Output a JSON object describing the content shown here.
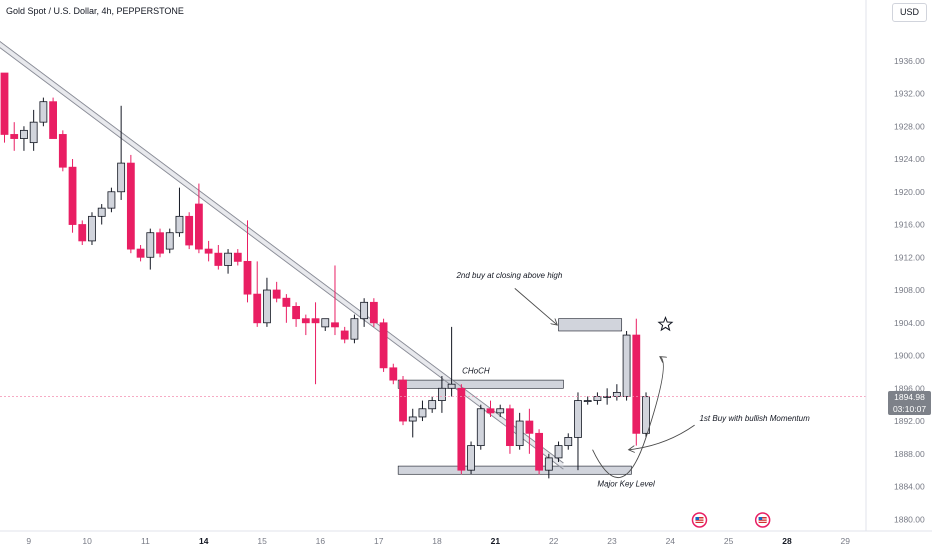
{
  "header": {
    "title": "Gold Spot / U.S. Dollar, 4h, PEPPERSTONE",
    "currency": "USD"
  },
  "last_price": {
    "value": "1894.98",
    "countdown": "03:10:07"
  },
  "colors": {
    "bearish": "#e91e63",
    "bullish": "#d1d4dc",
    "candle_border": "#131722",
    "zone": "#d1d4dc",
    "price_line": "#f48fb1"
  },
  "icons": [
    "us-flag-icon",
    "us-flag-icon",
    "star-icon"
  ],
  "chart_data": {
    "type": "candlestick",
    "instrument": "Gold Spot / U.S. Dollar",
    "interval": "4h",
    "y_range": [
      1879,
      1940
    ],
    "y_ticks": [
      {
        "value": 1880,
        "label": "1880.00"
      },
      {
        "value": 1884,
        "label": "1884.00"
      },
      {
        "value": 1888,
        "label": "1888.00"
      },
      {
        "value": 1892,
        "label": "1892.00"
      },
      {
        "value": 1896,
        "label": "1896.00"
      },
      {
        "value": 1900,
        "label": "1900.00"
      },
      {
        "value": 1904,
        "label": "1904.00"
      },
      {
        "value": 1908,
        "label": "1908.00"
      },
      {
        "value": 1912,
        "label": "1912.00"
      },
      {
        "value": 1916,
        "label": "1916.00"
      },
      {
        "value": 1920,
        "label": "1920.00"
      },
      {
        "value": 1924,
        "label": "1924.00"
      },
      {
        "value": 1928,
        "label": "1928.00"
      },
      {
        "value": 1932,
        "label": "1932.00"
      },
      {
        "value": 1936,
        "label": "1936.00"
      }
    ],
    "x_ticks": [
      {
        "i": 2.5,
        "label": "9",
        "bold": false
      },
      {
        "i": 8.5,
        "label": "10",
        "bold": false
      },
      {
        "i": 14.5,
        "label": "11",
        "bold": false
      },
      {
        "i": 20.5,
        "label": "14",
        "bold": true
      },
      {
        "i": 26.5,
        "label": "15",
        "bold": false
      },
      {
        "i": 32.5,
        "label": "16",
        "bold": false
      },
      {
        "i": 38.5,
        "label": "17",
        "bold": false
      },
      {
        "i": 44.5,
        "label": "18",
        "bold": false
      },
      {
        "i": 50.5,
        "label": "21",
        "bold": true
      },
      {
        "i": 56.5,
        "label": "22",
        "bold": false
      },
      {
        "i": 62.5,
        "label": "23",
        "bold": false
      },
      {
        "i": 68.5,
        "label": "24",
        "bold": false
      },
      {
        "i": 74.5,
        "label": "25",
        "bold": false
      },
      {
        "i": 80.5,
        "label": "28",
        "bold": true
      },
      {
        "i": 86.5,
        "label": "29",
        "bold": false
      }
    ],
    "candles": [
      {
        "o": 1934.5,
        "h": 1934.5,
        "l": 1926.0,
        "c": 1927.0
      },
      {
        "o": 1927.0,
        "h": 1928.5,
        "l": 1925.0,
        "c": 1926.5
      },
      {
        "o": 1926.5,
        "h": 1928.0,
        "l": 1925.0,
        "c": 1927.5
      },
      {
        "o": 1926.0,
        "h": 1930.0,
        "l": 1925.0,
        "c": 1928.5
      },
      {
        "o": 1928.5,
        "h": 1931.5,
        "l": 1928.0,
        "c": 1931.0
      },
      {
        "o": 1931.0,
        "h": 1931.5,
        "l": 1926.5,
        "c": 1926.5
      },
      {
        "o": 1927.0,
        "h": 1927.5,
        "l": 1922.5,
        "c": 1923.0
      },
      {
        "o": 1923.0,
        "h": 1924.0,
        "l": 1915.0,
        "c": 1916.0
      },
      {
        "o": 1916.0,
        "h": 1916.5,
        "l": 1913.5,
        "c": 1914.0
      },
      {
        "o": 1914.0,
        "h": 1917.5,
        "l": 1913.5,
        "c": 1917.0
      },
      {
        "o": 1917.0,
        "h": 1918.5,
        "l": 1916.0,
        "c": 1918.0
      },
      {
        "o": 1918.0,
        "h": 1920.5,
        "l": 1917.5,
        "c": 1920.0
      },
      {
        "o": 1920.0,
        "h": 1930.5,
        "l": 1919.0,
        "c": 1923.5
      },
      {
        "o": 1923.5,
        "h": 1924.5,
        "l": 1912.5,
        "c": 1913.0
      },
      {
        "o": 1913.0,
        "h": 1913.5,
        "l": 1911.5,
        "c": 1912.0
      },
      {
        "o": 1912.0,
        "h": 1915.5,
        "l": 1910.5,
        "c": 1915.0
      },
      {
        "o": 1915.0,
        "h": 1915.5,
        "l": 1912.0,
        "c": 1912.5
      },
      {
        "o": 1913.0,
        "h": 1915.5,
        "l": 1912.5,
        "c": 1915.0
      },
      {
        "o": 1915.0,
        "h": 1920.5,
        "l": 1914.5,
        "c": 1917.0
      },
      {
        "o": 1917.0,
        "h": 1917.5,
        "l": 1913.0,
        "c": 1913.5
      },
      {
        "o": 1918.5,
        "h": 1921.0,
        "l": 1912.5,
        "c": 1913.0
      },
      {
        "o": 1913.0,
        "h": 1914.0,
        "l": 1911.5,
        "c": 1912.5
      },
      {
        "o": 1912.5,
        "h": 1913.5,
        "l": 1910.5,
        "c": 1911.0
      },
      {
        "o": 1911.0,
        "h": 1913.0,
        "l": 1910.0,
        "c": 1912.5
      },
      {
        "o": 1912.5,
        "h": 1913.0,
        "l": 1911.0,
        "c": 1911.5
      },
      {
        "o": 1911.5,
        "h": 1916.5,
        "l": 1906.5,
        "c": 1907.5
      },
      {
        "o": 1907.5,
        "h": 1911.5,
        "l": 1903.5,
        "c": 1904.0
      },
      {
        "o": 1904.0,
        "h": 1909.5,
        "l": 1903.5,
        "c": 1908.0
      },
      {
        "o": 1908.0,
        "h": 1909.0,
        "l": 1906.5,
        "c": 1907.0
      },
      {
        "o": 1907.0,
        "h": 1907.5,
        "l": 1904.0,
        "c": 1906.0
      },
      {
        "o": 1906.0,
        "h": 1906.5,
        "l": 1903.5,
        "c": 1904.5
      },
      {
        "o": 1904.5,
        "h": 1905.0,
        "l": 1902.5,
        "c": 1904.0
      },
      {
        "o": 1904.5,
        "h": 1906.5,
        "l": 1896.5,
        "c": 1904.0
      },
      {
        "o": 1903.5,
        "h": 1904.5,
        "l": 1903.0,
        "c": 1904.5
      },
      {
        "o": 1904.0,
        "h": 1911.0,
        "l": 1902.5,
        "c": 1903.5
      },
      {
        "o": 1903.0,
        "h": 1903.5,
        "l": 1901.5,
        "c": 1902.0
      },
      {
        "o": 1902.0,
        "h": 1905.0,
        "l": 1901.5,
        "c": 1904.5
      },
      {
        "o": 1904.5,
        "h": 1907.0,
        "l": 1903.5,
        "c": 1906.5
      },
      {
        "o": 1906.5,
        "h": 1907.0,
        "l": 1903.5,
        "c": 1904.0
      },
      {
        "o": 1904.0,
        "h": 1904.5,
        "l": 1898.0,
        "c": 1898.5
      },
      {
        "o": 1898.5,
        "h": 1899.0,
        "l": 1896.5,
        "c": 1897.0
      },
      {
        "o": 1897.0,
        "h": 1897.5,
        "l": 1891.5,
        "c": 1892.0
      },
      {
        "o": 1892.0,
        "h": 1893.5,
        "l": 1890.0,
        "c": 1892.5
      },
      {
        "o": 1892.5,
        "h": 1894.5,
        "l": 1892.0,
        "c": 1893.5
      },
      {
        "o": 1893.5,
        "h": 1895.0,
        "l": 1893.0,
        "c": 1894.5
      },
      {
        "o": 1894.5,
        "h": 1897.5,
        "l": 1893.0,
        "c": 1896.0
      },
      {
        "o": 1896.0,
        "h": 1903.5,
        "l": 1895.0,
        "c": 1896.5
      },
      {
        "o": 1896.0,
        "h": 1896.5,
        "l": 1885.5,
        "c": 1886.0
      },
      {
        "o": 1886.0,
        "h": 1889.5,
        "l": 1885.5,
        "c": 1889.0
      },
      {
        "o": 1889.0,
        "h": 1894.0,
        "l": 1888.5,
        "c": 1893.5
      },
      {
        "o": 1893.5,
        "h": 1894.5,
        "l": 1892.5,
        "c": 1893.0
      },
      {
        "o": 1893.0,
        "h": 1894.0,
        "l": 1892.5,
        "c": 1893.5
      },
      {
        "o": 1893.5,
        "h": 1894.0,
        "l": 1888.0,
        "c": 1889.0
      },
      {
        "o": 1889.0,
        "h": 1893.0,
        "l": 1888.5,
        "c": 1892.0
      },
      {
        "o": 1892.0,
        "h": 1893.5,
        "l": 1888.0,
        "c": 1890.5
      },
      {
        "o": 1890.5,
        "h": 1891.0,
        "l": 1885.5,
        "c": 1886.0
      },
      {
        "o": 1886.0,
        "h": 1888.0,
        "l": 1885.0,
        "c": 1887.5
      },
      {
        "o": 1887.5,
        "h": 1889.5,
        "l": 1887.0,
        "c": 1889.0
      },
      {
        "o": 1889.0,
        "h": 1890.5,
        "l": 1888.5,
        "c": 1890.0
      },
      {
        "o": 1890.0,
        "h": 1895.5,
        "l": 1886.0,
        "c": 1894.5
      },
      {
        "o": 1894.5,
        "h": 1895.0,
        "l": 1894.0,
        "c": 1894.5
      },
      {
        "o": 1894.5,
        "h": 1895.5,
        "l": 1894.0,
        "c": 1895.0
      },
      {
        "o": 1895.0,
        "h": 1896.0,
        "l": 1894.0,
        "c": 1895.0
      },
      {
        "o": 1895.0,
        "h": 1896.5,
        "l": 1894.5,
        "c": 1895.5
      },
      {
        "o": 1895.0,
        "h": 1903.0,
        "l": 1894.5,
        "c": 1902.5
      },
      {
        "o": 1902.5,
        "h": 1904.5,
        "l": 1889.0,
        "c": 1890.5
      },
      {
        "o": 1890.5,
        "h": 1895.5,
        "l": 1890.0,
        "c": 1894.98
      }
    ],
    "trendline": {
      "from": {
        "i": -0.5,
        "price": 1938.0
      },
      "to": {
        "i": 57.5,
        "price": 1886.5
      }
    },
    "zones": [
      {
        "name": "choch",
        "i0": 40.5,
        "i1": 57.5,
        "top": 1897.0,
        "bottom": 1896.0
      },
      {
        "name": "major-key-level",
        "i0": 40.5,
        "i1": 64.5,
        "top": 1886.5,
        "bottom": 1885.5
      },
      {
        "name": "second-buy",
        "i0": 57.0,
        "i1": 63.5,
        "top": 1904.5,
        "bottom": 1903.0
      }
    ],
    "annotations": {
      "choch": "CHoCH",
      "major_key_level": "Major Key Level",
      "second_buy": "2nd buy at closing above high",
      "first_buy": "1st Buy with bullish Momentum"
    }
  }
}
